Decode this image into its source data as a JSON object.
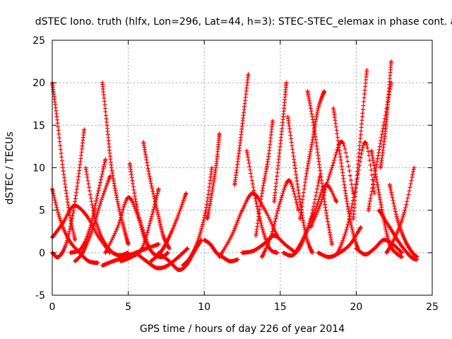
{
  "chart_data": {
    "type": "scatter",
    "title": "dSTEC Iono. truth (hlfx, Lon=296, Lat=44, h=3): STEC-STEC_elemax in phase cont. a",
    "xlabel": "GPS time / hours of day 226 of year 2014",
    "ylabel": "dSTEC  / TECUs",
    "xlim": [
      0,
      25
    ],
    "ylim": [
      -5,
      25
    ],
    "x_ticks": [
      "0",
      "5",
      "10",
      "15",
      "20",
      "25"
    ],
    "y_ticks": [
      "-5",
      "0",
      "5",
      "10",
      "15",
      "20",
      "25"
    ],
    "grid": true,
    "marker": "+",
    "color": "#ff0000",
    "series": [
      {
        "x": [
          0,
          0.3,
          0.7,
          1.1,
          1.5
        ],
        "y": [
          20,
          16,
          10,
          5,
          1.5
        ]
      },
      {
        "x": [
          0,
          0.5,
          1.1,
          1.8,
          2.4,
          3.0
        ],
        "y": [
          7.5,
          4,
          1.5,
          0,
          -1,
          -1.2
        ]
      },
      {
        "x": [
          0,
          0.4,
          0.9,
          1.4,
          1.8,
          2.1
        ],
        "y": [
          0,
          -0.5,
          1,
          5,
          10,
          14.5
        ]
      },
      {
        "x": [
          0,
          0.7,
          1.4,
          2.2,
          3.0,
          3.8
        ],
        "y": [
          1.8,
          3.5,
          5.5,
          4.5,
          2,
          0
        ]
      },
      {
        "x": [
          1.2,
          1.9,
          2.5,
          3.0,
          3.5
        ],
        "y": [
          0,
          0.5,
          3,
          7,
          11
        ]
      },
      {
        "x": [
          2.2,
          2.7,
          3.2,
          3.8,
          4.4,
          5.0
        ],
        "y": [
          10,
          5,
          2,
          0.3,
          -0.3,
          0
        ]
      },
      {
        "x": [
          3.3,
          3.6,
          3.9,
          4.3,
          4.7,
          5.0
        ],
        "y": [
          20,
          15,
          10,
          6,
          3,
          1
        ]
      },
      {
        "x": [
          1.5,
          2.0,
          2.6,
          3.2,
          3.8
        ],
        "y": [
          -1,
          0,
          2.5,
          6,
          9
        ]
      },
      {
        "x": [
          3.3,
          4.0,
          4.8,
          5.5,
          6.2,
          7.0
        ],
        "y": [
          -1.5,
          -1,
          -0.5,
          0,
          0.5,
          1
        ]
      },
      {
        "x": [
          3.5,
          4.3,
          5.0,
          5.7,
          6.4
        ],
        "y": [
          0,
          3,
          6.5,
          4,
          0.5
        ]
      },
      {
        "x": [
          5.1,
          5.5,
          6.0,
          6.6,
          7.2,
          7.6
        ],
        "y": [
          10.5,
          6,
          2,
          0,
          -0.5,
          0
        ]
      },
      {
        "x": [
          4.5,
          5.2,
          5.9,
          6.5,
          7.0
        ],
        "y": [
          -1,
          -0.5,
          0.5,
          4,
          7.5
        ]
      },
      {
        "x": [
          6.0,
          6.4,
          6.9,
          7.3,
          7.7
        ],
        "y": [
          13,
          9,
          5,
          2,
          0.5
        ]
      },
      {
        "x": [
          5.5,
          6.2,
          6.9,
          7.6,
          8.3,
          8.9
        ],
        "y": [
          0,
          -1,
          -1.8,
          -1.5,
          -0.5,
          0.5
        ]
      },
      {
        "x": [
          6.5,
          7.1,
          7.6,
          8.2,
          8.8
        ],
        "y": [
          -1,
          0,
          1.5,
          4,
          7
        ]
      },
      {
        "x": [
          7.0,
          7.7,
          8.3,
          8.8,
          9.3,
          9.8
        ],
        "y": [
          0,
          -1,
          -2,
          -1.5,
          0,
          1.5
        ]
      },
      {
        "x": [
          8.6,
          9.1,
          9.6,
          10.1,
          10.5
        ],
        "y": [
          -1.5,
          -0.5,
          1.5,
          5,
          10
        ]
      },
      {
        "x": [
          10.0,
          10.4,
          10.8,
          11.2,
          11.7,
          12.2
        ],
        "y": [
          1.5,
          1,
          0,
          -0.5,
          -1,
          -0.8
        ]
      },
      {
        "x": [
          10.2,
          10.5,
          10.8,
          11.0
        ],
        "y": [
          4,
          7,
          10.5,
          14
        ]
      },
      {
        "x": [
          12.0,
          12.3,
          12.6,
          12.9
        ],
        "y": [
          8,
          12,
          16.5,
          21
        ]
      },
      {
        "x": [
          11.0,
          11.8,
          12.5,
          13.2,
          14.0,
          14.8
        ],
        "y": [
          -0.5,
          2,
          5,
          7,
          5,
          2
        ]
      },
      {
        "x": [
          12.8,
          13.3,
          13.8,
          14.3,
          14.8
        ],
        "y": [
          12,
          7,
          3,
          0.5,
          0
        ]
      },
      {
        "x": [
          12.5,
          13.2,
          13.9,
          14.6,
          15.3,
          16.0
        ],
        "y": [
          0,
          0.2,
          1,
          2,
          1,
          0
        ]
      },
      {
        "x": [
          13.4,
          13.8,
          14.2,
          14.5
        ],
        "y": [
          2,
          7,
          11,
          15.5
        ]
      },
      {
        "x": [
          13.8,
          14.4,
          15.0,
          15.6,
          16.2
        ],
        "y": [
          -0.5,
          2,
          6,
          8.5,
          5
        ]
      },
      {
        "x": [
          14.6,
          14.9,
          15.2,
          15.4
        ],
        "y": [
          6,
          11,
          16,
          20
        ]
      },
      {
        "x": [
          15.5,
          15.9,
          16.3,
          16.7,
          17.1
        ],
        "y": [
          16,
          11,
          6,
          2,
          0
        ]
      },
      {
        "x": [
          15.2,
          15.8,
          16.4,
          17.0,
          17.6
        ],
        "y": [
          0,
          -0.3,
          1,
          4,
          9
        ]
      },
      {
        "x": [
          16.3,
          16.7,
          17.1,
          17.5,
          17.9
        ],
        "y": [
          4,
          9,
          13,
          17,
          19
        ]
      },
      {
        "x": [
          16.8,
          17.2,
          17.6,
          18.0,
          18.4
        ],
        "y": [
          19,
          15,
          10,
          5,
          1
        ]
      },
      {
        "x": [
          16.0,
          16.6,
          17.3,
          18.0,
          18.7
        ],
        "y": [
          0,
          2,
          5,
          8,
          6
        ]
      },
      {
        "x": [
          17.0,
          17.7,
          18.4,
          19.1,
          19.8
        ],
        "y": [
          3,
          6,
          10,
          13,
          7
        ]
      },
      {
        "x": [
          17.5,
          18.2,
          18.9,
          19.6,
          20.3
        ],
        "y": [
          0,
          -0.5,
          0,
          1,
          3
        ]
      },
      {
        "x": [
          18.5,
          18.9,
          19.3,
          19.7,
          20.1
        ],
        "y": [
          17,
          12,
          7,
          3,
          0.5
        ]
      },
      {
        "x": [
          18.8,
          19.4,
          20.0,
          20.6,
          21.2
        ],
        "y": [
          0,
          3,
          8,
          13,
          7
        ]
      },
      {
        "x": [
          19.8,
          20.1,
          20.4,
          20.7
        ],
        "y": [
          4,
          10,
          16,
          21.5
        ]
      },
      {
        "x": [
          20.0,
          20.6,
          21.2,
          21.8,
          22.4,
          23.0
        ],
        "y": [
          0.5,
          -0.2,
          0.5,
          1.5,
          1,
          0
        ]
      },
      {
        "x": [
          20.8,
          21.3,
          21.8,
          22.3
        ],
        "y": [
          5,
          10,
          15,
          20
        ]
      },
      {
        "x": [
          21.0,
          21.4,
          21.8,
          22.2,
          22.6,
          23.0
        ],
        "y": [
          12,
          8,
          4,
          1,
          0,
          -0.5
        ]
      },
      {
        "x": [
          21.6,
          21.9,
          22.1,
          22.3
        ],
        "y": [
          10,
          14,
          18,
          22.5
        ]
      },
      {
        "x": [
          22.0,
          22.6,
          23.2,
          23.8
        ],
        "y": [
          0,
          2,
          5,
          10
        ]
      },
      {
        "x": [
          22.2,
          22.7,
          23.2,
          23.7,
          24.0
        ],
        "y": [
          8,
          4,
          1.5,
          0,
          -0.5
        ]
      },
      {
        "x": [
          21.5,
          22.2,
          22.9,
          23.6,
          24.0
        ],
        "y": [
          5,
          3,
          1,
          -0.5,
          -0.8
        ]
      }
    ]
  }
}
